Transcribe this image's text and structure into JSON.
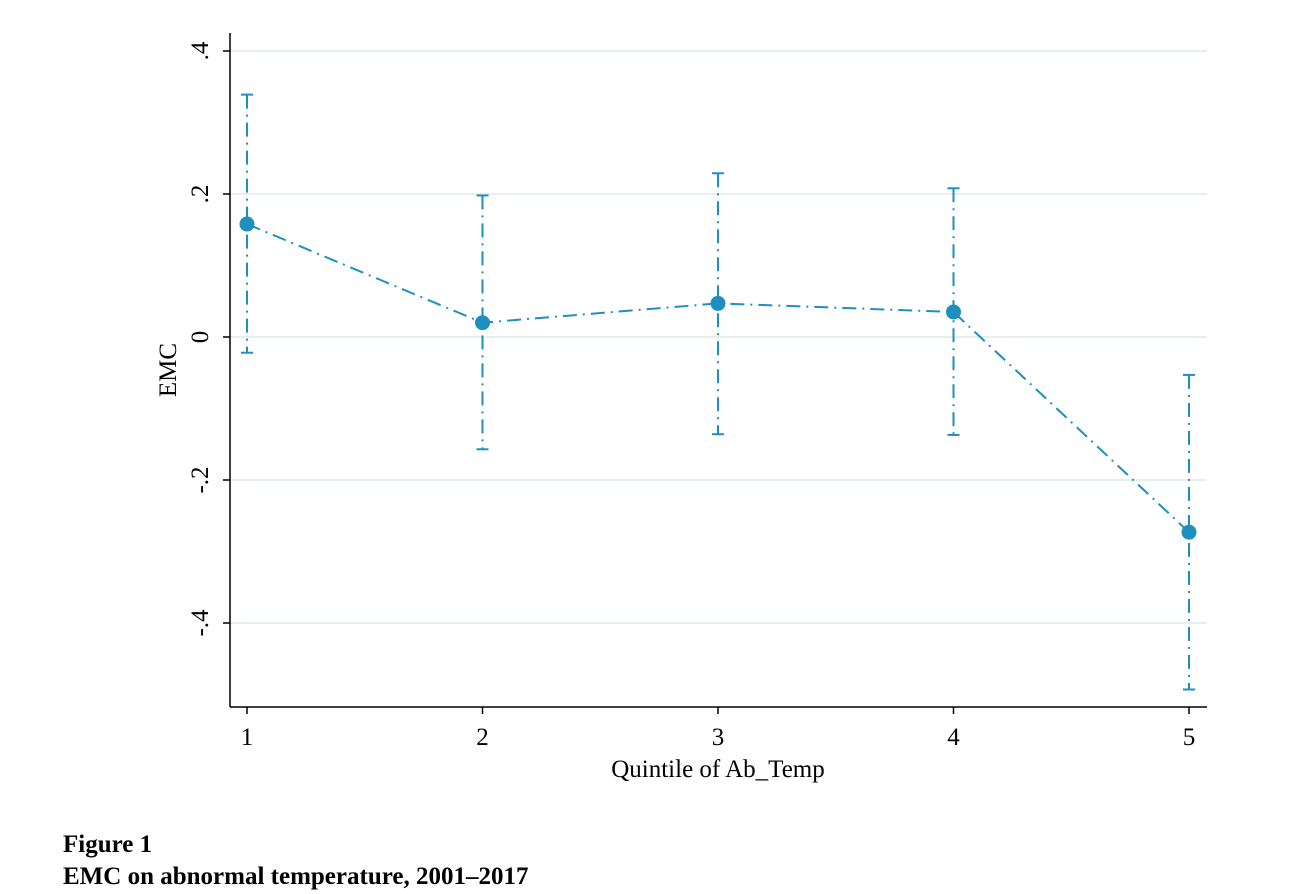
{
  "figure": {
    "label": "Figure 1",
    "caption": "EMC on abnormal temperature, 2001–2017"
  },
  "chart_data": {
    "type": "line",
    "xlabel": "Quintile of Ab_Temp",
    "ylabel": "EMC",
    "x": [
      1,
      2,
      3,
      4,
      5
    ],
    "x_ticks": [
      "1",
      "2",
      "3",
      "4",
      "5"
    ],
    "y_ticks": [
      ".4",
      ".2",
      "0",
      "-.2",
      "-.4"
    ],
    "y_tick_values": [
      0.4,
      0.2,
      0,
      -0.2,
      -0.4
    ],
    "ylim": [
      -0.5,
      0.42
    ],
    "xlim": [
      0.93,
      5.07
    ],
    "grid": true,
    "series": [
      {
        "values": [
          0.158,
          0.02,
          0.047,
          0.035,
          -0.273
        ],
        "ci_low": [
          -0.022,
          -0.157,
          -0.136,
          -0.137,
          -0.493
        ],
        "ci_high": [
          0.339,
          0.198,
          0.229,
          0.208,
          -0.053
        ],
        "color": "#1f8fbf"
      }
    ]
  }
}
